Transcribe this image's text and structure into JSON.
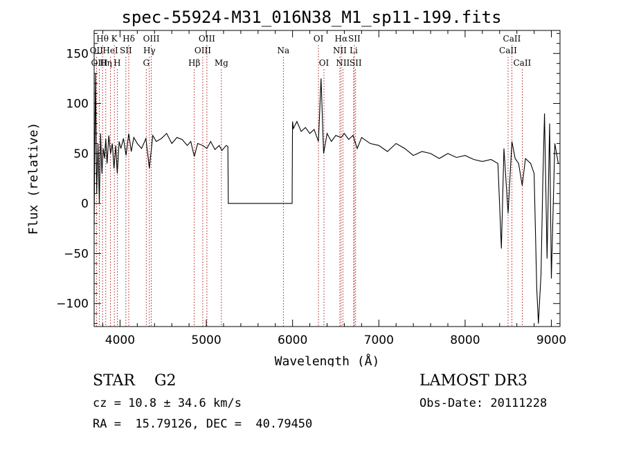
{
  "chart_data": {
    "type": "line",
    "title": "spec-55924-M31_016N38_M1_sp11-199.fits",
    "xlabel": "Wavelength (Å)",
    "ylabel": "Flux (relative)",
    "xlim": [
      3700,
      9100
    ],
    "ylim": [
      -123,
      173
    ],
    "xticks": [
      4000,
      5000,
      6000,
      7000,
      8000,
      9000
    ],
    "yticks": [
      -100,
      -50,
      0,
      50,
      100,
      150
    ],
    "xtick_labels": [
      "4000",
      "5000",
      "6000",
      "7000",
      "8000",
      "9000"
    ],
    "ytick_labels": [
      "−100",
      "−50",
      "0",
      "50",
      "100",
      "150"
    ],
    "grid": false,
    "series": [
      {
        "name": "spectrum",
        "x": [
          3700,
          3715,
          3730,
          3745,
          3760,
          3775,
          3790,
          3805,
          3820,
          3835,
          3850,
          3870,
          3890,
          3910,
          3930,
          3950,
          3968,
          3990,
          4010,
          4040,
          4070,
          4101,
          4130,
          4160,
          4200,
          4250,
          4300,
          4340,
          4380,
          4420,
          4480,
          4540,
          4600,
          4660,
          4720,
          4780,
          4820,
          4861,
          4900,
          4960,
          5007,
          5050,
          5100,
          5150,
          5180,
          5230,
          5250,
          5255,
          5400,
          5600,
          5800,
          5995,
          6000,
          6010,
          6050,
          6100,
          6150,
          6200,
          6250,
          6300,
          6330,
          6360,
          6400,
          6450,
          6500,
          6563,
          6600,
          6650,
          6700,
          6750,
          6800,
          6900,
          7000,
          7100,
          7200,
          7300,
          7400,
          7500,
          7600,
          7700,
          7800,
          7900,
          8000,
          8100,
          8200,
          8300,
          8380,
          8420,
          8450,
          8498,
          8542,
          8580,
          8620,
          8662,
          8700,
          8760,
          8800,
          8830,
          8850,
          8880,
          8900,
          8920,
          8950,
          8980,
          9000,
          9040,
          9080
        ],
        "y": [
          -20,
          130,
          10,
          60,
          0,
          70,
          30,
          55,
          45,
          65,
          40,
          68,
          50,
          60,
          35,
          58,
          30,
          62,
          55,
          65,
          48,
          70,
          52,
          66,
          60,
          55,
          65,
          35,
          68,
          62,
          65,
          70,
          60,
          66,
          64,
          58,
          62,
          47,
          60,
          58,
          55,
          62,
          54,
          58,
          53,
          58,
          57,
          0,
          0,
          0,
          0,
          0,
          82,
          75,
          82,
          72,
          76,
          70,
          74,
          62,
          125,
          50,
          70,
          62,
          68,
          66,
          70,
          64,
          68,
          55,
          66,
          60,
          58,
          52,
          60,
          55,
          48,
          52,
          50,
          45,
          50,
          46,
          48,
          44,
          42,
          44,
          40,
          -45,
          55,
          -10,
          62,
          45,
          40,
          18,
          45,
          40,
          30,
          -85,
          -120,
          -70,
          20,
          90,
          -55,
          80,
          -75,
          60,
          40
        ]
      }
    ],
    "lines": [
      {
        "label": "Hθ",
        "x": 3797,
        "row": 0
      },
      {
        "label": "OII",
        "x": 3727,
        "row": 1
      },
      {
        "label": "OIII",
        "x": 3760,
        "row": 2
      },
      {
        "label": "HeI",
        "x": 3889,
        "row": 1
      },
      {
        "label": "K",
        "x": 3934,
        "row": 0
      },
      {
        "label": "Hη",
        "x": 3835,
        "row": 2
      },
      {
        "label": "SII",
        "x": 4068,
        "row": 1
      },
      {
        "label": "H",
        "x": 3968,
        "row": 2
      },
      {
        "label": "Hδ",
        "x": 4101,
        "row": 0
      },
      {
        "label": "OIII",
        "x": 4363,
        "row": 0
      },
      {
        "label": "Hγ",
        "x": 4340,
        "row": 1
      },
      {
        "label": "G",
        "x": 4304,
        "row": 2
      },
      {
        "label": "Hβ",
        "x": 4861,
        "row": 2
      },
      {
        "label": "OIII",
        "x": 5007,
        "row": 0
      },
      {
        "label": "OIII",
        "x": 4959,
        "row": 1
      },
      {
        "label": "Mg",
        "x": 5175,
        "row": 2
      },
      {
        "label": "Na",
        "x": 5893,
        "row": 1
      },
      {
        "label": "OI",
        "x": 6300,
        "row": 0
      },
      {
        "label": "OI",
        "x": 6364,
        "row": 2
      },
      {
        "label": "Hα",
        "x": 6563,
        "row": 0
      },
      {
        "label": "SII",
        "x": 6716,
        "row": 0
      },
      {
        "label": "NII",
        "x": 6548,
        "row": 1
      },
      {
        "label": "Li",
        "x": 6708,
        "row": 1
      },
      {
        "label": "NII",
        "x": 6583,
        "row": 2
      },
      {
        "label": "SII",
        "x": 6731,
        "row": 2
      },
      {
        "label": "CaII",
        "x": 8542,
        "row": 0
      },
      {
        "label": "CaII",
        "x": 8498,
        "row": 1
      },
      {
        "label": "CaII",
        "x": 8662,
        "row": 2
      }
    ]
  },
  "info": {
    "object_class": "STAR    G2",
    "survey": "LAMOST DR3",
    "cz": "cz = 10.8 ± 34.6 km/s",
    "obs_date": "Obs-Date: 20111228",
    "radec": "RA =  15.79126, DEC =  40.79450"
  },
  "colors": {
    "line_marker": "#b22222",
    "spectrum": "#000000",
    "axis": "#000000"
  }
}
